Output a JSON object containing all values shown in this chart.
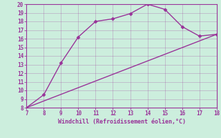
{
  "title": "",
  "xlabel": "Windchill (Refroidissement éolien,°C)",
  "line1_x": [
    7,
    8,
    9,
    10,
    11,
    12,
    13,
    14,
    15,
    16,
    17,
    18
  ],
  "line1_y": [
    8.0,
    9.5,
    13.2,
    16.2,
    18.0,
    18.3,
    18.9,
    20.0,
    19.4,
    17.4,
    16.3,
    16.5
  ],
  "line2_x": [
    7,
    18
  ],
  "line2_y": [
    8.0,
    16.5
  ],
  "color": "#993399",
  "bg_color": "#cceedd",
  "xlim": [
    7,
    18
  ],
  "ylim": [
    8,
    20
  ],
  "xticks": [
    7,
    8,
    9,
    10,
    11,
    12,
    13,
    14,
    15,
    16,
    17,
    18
  ],
  "yticks": [
    8,
    9,
    10,
    11,
    12,
    13,
    14,
    15,
    16,
    17,
    18,
    19,
    20
  ],
  "marker": "D",
  "markersize": 2.5,
  "linewidth": 1.0
}
